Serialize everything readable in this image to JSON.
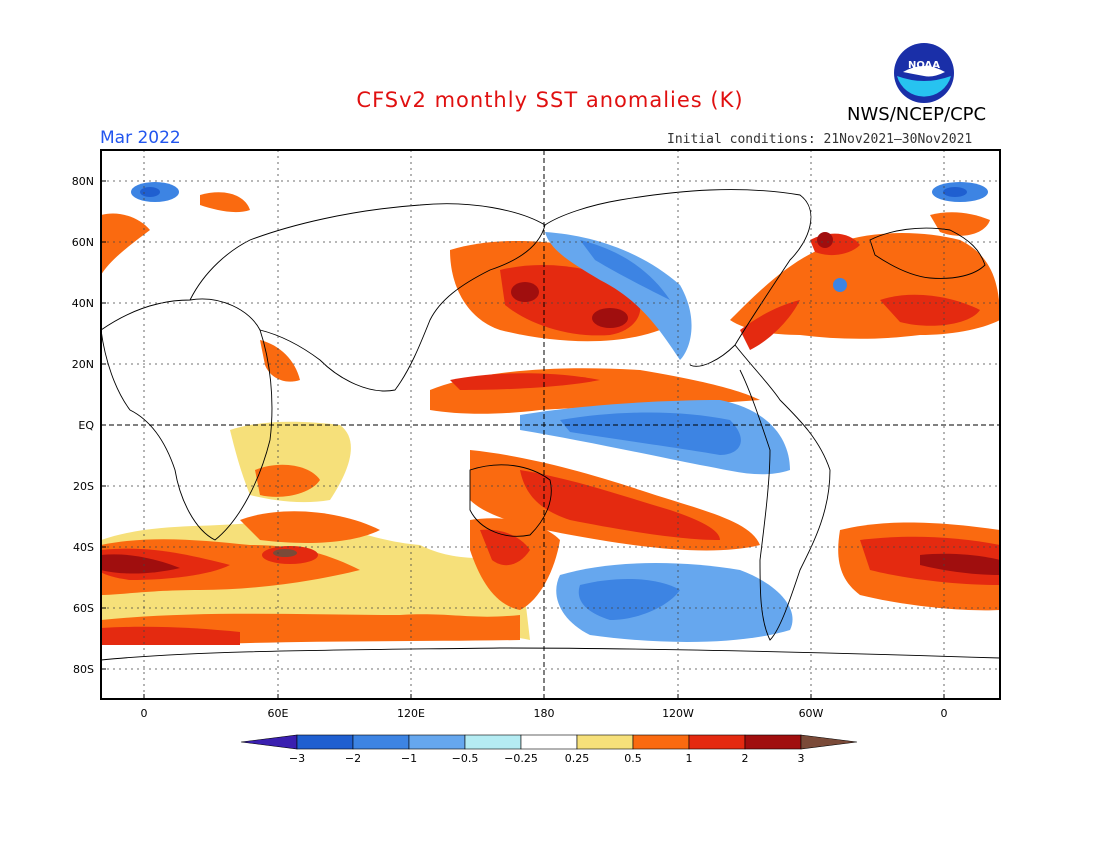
{
  "title": "CFSv2 monthly SST anomalies (K)",
  "valid_month": "Mar 2022",
  "initial_conditions": "Initial conditions: 21Nov2021–30Nov2021",
  "agency": "NWS/NCEP/CPC",
  "logo_text": "NOAA",
  "colors": {
    "title": "#e01010",
    "valid": "#2255ee",
    "frame": "#000000"
  },
  "lat_labels": [
    "80N",
    "60N",
    "40N",
    "20N",
    "EQ",
    "20S",
    "40S",
    "60S",
    "80S"
  ],
  "lon_labels": [
    "0",
    "60E",
    "120E",
    "180",
    "120W",
    "60W",
    "0"
  ],
  "colorbar": {
    "labels": [
      "−3",
      "−2",
      "−1",
      "−0.5",
      "−0.25",
      "0.25",
      "0.5",
      "1",
      "2",
      "3"
    ],
    "colors": [
      "#3a1fb0",
      "#1f5fd0",
      "#3d84e3",
      "#66a7ee",
      "#b5ecf3",
      "#ffffff",
      "#f6e07a",
      "#fa6a10",
      "#e42a10",
      "#a00e0e",
      "#7a4a38"
    ]
  }
}
